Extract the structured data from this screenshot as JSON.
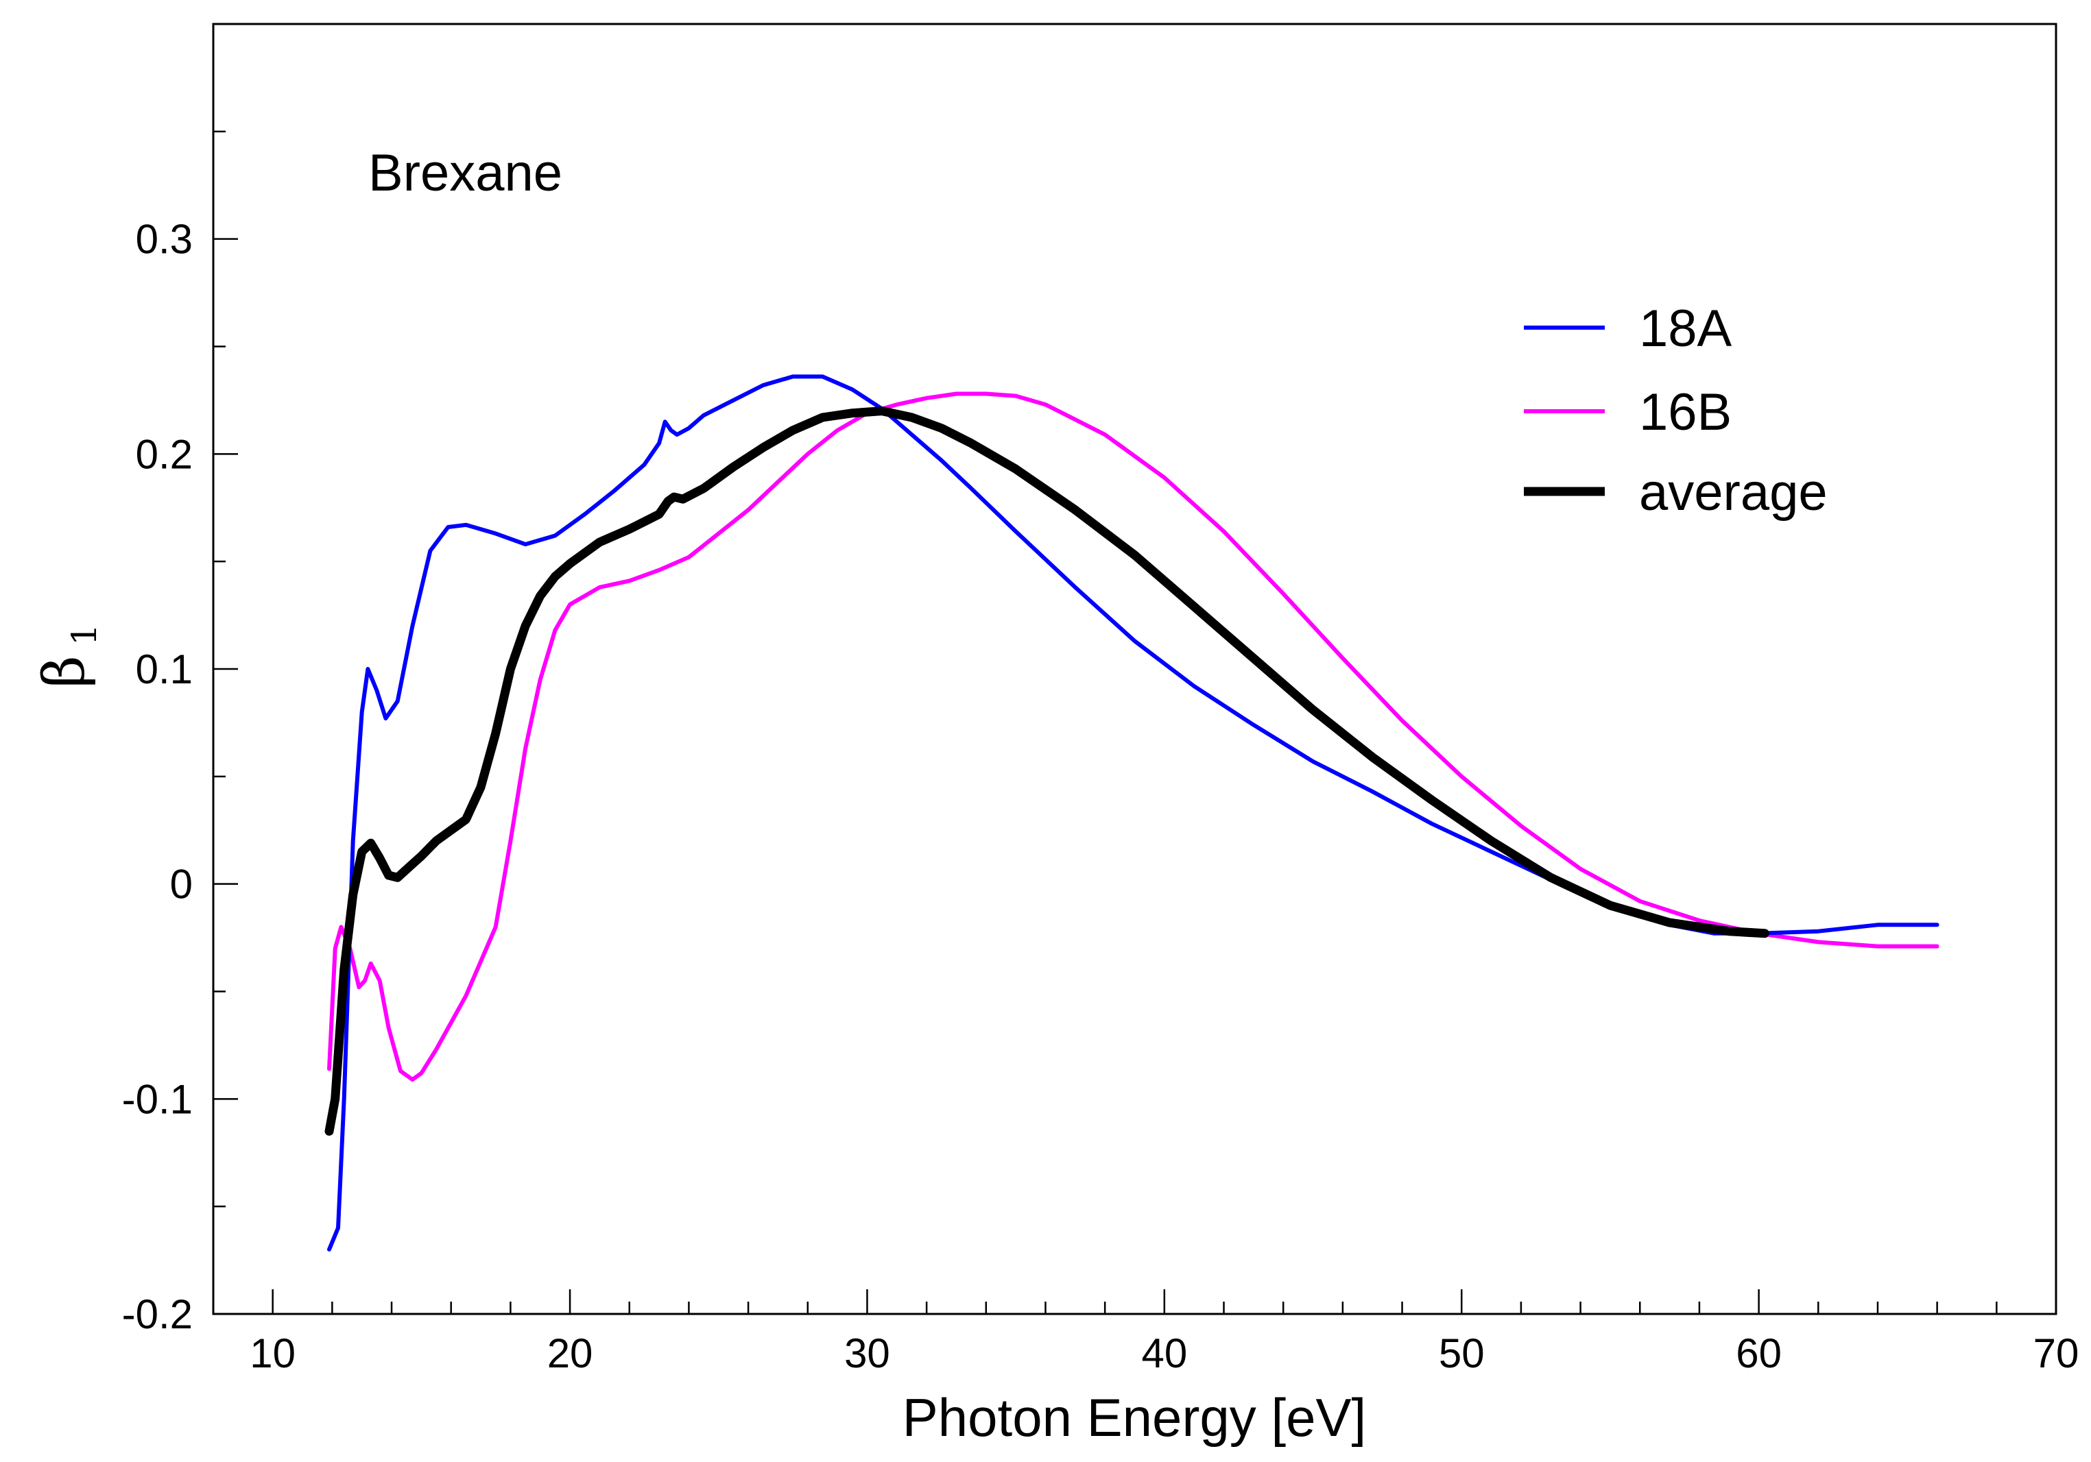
{
  "chart_data": {
    "type": "line",
    "annotation": "Brexane",
    "xlabel": "Photon Energy [eV]",
    "ylabel": "β",
    "ylabel_subscript": "1",
    "xlim": [
      8,
      70
    ],
    "ylim": [
      -0.2,
      0.4
    ],
    "x_ticks": [
      10,
      20,
      30,
      40,
      50,
      60,
      70
    ],
    "x_tick_labels": [
      "10",
      "20",
      "30",
      "40",
      "50",
      "60",
      "70"
    ],
    "y_ticks": [
      -0.2,
      -0.1,
      0,
      0.1,
      0.2,
      0.3
    ],
    "y_tick_labels": [
      "-0.2",
      "-0.1",
      "0",
      "0.1",
      "0.2",
      "0.3"
    ],
    "x_minor_step": 2,
    "y_minor_step": 0.05,
    "grid": false,
    "legend_position": "top-right",
    "series": [
      {
        "name": "18A",
        "color": "#0000ff",
        "x": [
          11.9,
          12.2,
          12.4,
          12.7,
          13.0,
          13.2,
          13.5,
          13.8,
          14.2,
          14.7,
          15.3,
          15.9,
          16.5,
          17.5,
          18.5,
          19.5,
          20.5,
          21.5,
          22.5,
          23.0,
          23.2,
          23.4,
          23.6,
          24.0,
          24.5,
          25.5,
          26.5,
          27.5,
          28.5,
          29.5,
          30.5,
          31.5,
          32.5,
          33.5,
          35.0,
          37.0,
          39.0,
          41.0,
          43.0,
          45.0,
          47.0,
          49.0,
          51.0,
          53.0,
          55.0,
          57.0,
          58.5,
          60.0,
          62.0,
          64.0,
          66.0
        ],
        "values": [
          -0.17,
          -0.16,
          -0.1,
          0.02,
          0.08,
          0.1,
          0.09,
          0.077,
          0.085,
          0.12,
          0.155,
          0.166,
          0.167,
          0.163,
          0.158,
          0.162,
          0.172,
          0.183,
          0.195,
          0.205,
          0.215,
          0.211,
          0.209,
          0.212,
          0.218,
          0.225,
          0.232,
          0.236,
          0.236,
          0.23,
          0.221,
          0.209,
          0.197,
          0.184,
          0.164,
          0.138,
          0.113,
          0.092,
          0.074,
          0.057,
          0.043,
          0.028,
          0.015,
          0.002,
          -0.01,
          -0.019,
          -0.023,
          -0.023,
          -0.022,
          -0.019,
          -0.019
        ]
      },
      {
        "name": "16B",
        "color": "#ff00ff",
        "x": [
          11.9,
          12.1,
          12.3,
          12.6,
          12.9,
          13.1,
          13.3,
          13.6,
          13.9,
          14.3,
          14.7,
          15.0,
          15.5,
          16.5,
          17.5,
          18.0,
          18.5,
          19.0,
          19.5,
          20.0,
          21.0,
          22.0,
          23.0,
          24.0,
          25.0,
          26.0,
          27.0,
          28.0,
          29.0,
          30.0,
          31.0,
          32.0,
          33.0,
          34.0,
          35.0,
          36.0,
          38.0,
          40.0,
          42.0,
          44.0,
          46.0,
          48.0,
          50.0,
          52.0,
          54.0,
          56.0,
          58.0,
          60.0,
          62.0,
          64.0,
          66.0
        ],
        "values": [
          -0.086,
          -0.03,
          -0.02,
          -0.03,
          -0.048,
          -0.045,
          -0.037,
          -0.045,
          -0.067,
          -0.087,
          -0.091,
          -0.088,
          -0.077,
          -0.052,
          -0.02,
          0.02,
          0.063,
          0.095,
          0.118,
          0.13,
          0.138,
          0.141,
          0.146,
          0.152,
          0.163,
          0.174,
          0.187,
          0.2,
          0.211,
          0.219,
          0.223,
          0.226,
          0.228,
          0.228,
          0.227,
          0.223,
          0.209,
          0.189,
          0.164,
          0.135,
          0.105,
          0.076,
          0.05,
          0.027,
          0.007,
          -0.008,
          -0.017,
          -0.023,
          -0.027,
          -0.029,
          -0.029
        ]
      },
      {
        "name": "average",
        "color": "#000000",
        "x": [
          11.9,
          12.1,
          12.4,
          12.7,
          13.0,
          13.3,
          13.6,
          13.9,
          14.2,
          14.6,
          15.0,
          15.5,
          16.0,
          16.5,
          17.0,
          17.5,
          18.0,
          18.5,
          19.0,
          19.5,
          20.0,
          20.5,
          21.0,
          22.0,
          23.0,
          23.3,
          23.5,
          23.8,
          24.5,
          25.5,
          26.5,
          27.5,
          28.5,
          29.5,
          30.5,
          31.5,
          32.5,
          33.5,
          35.0,
          37.0,
          39.0,
          41.0,
          43.0,
          45.0,
          47.0,
          49.0,
          51.0,
          53.0,
          55.0,
          57.0,
          59.0,
          60.2
        ],
        "values": [
          -0.115,
          -0.1,
          -0.04,
          -0.005,
          0.015,
          0.019,
          0.012,
          0.004,
          0.003,
          0.008,
          0.013,
          0.02,
          0.025,
          0.03,
          0.045,
          0.07,
          0.1,
          0.12,
          0.134,
          0.143,
          0.149,
          0.154,
          0.159,
          0.165,
          0.172,
          0.178,
          0.18,
          0.179,
          0.184,
          0.194,
          0.203,
          0.211,
          0.217,
          0.219,
          0.22,
          0.217,
          0.212,
          0.205,
          0.193,
          0.174,
          0.153,
          0.129,
          0.105,
          0.081,
          0.059,
          0.039,
          0.02,
          0.003,
          -0.01,
          -0.018,
          -0.022,
          -0.023
        ]
      }
    ]
  }
}
